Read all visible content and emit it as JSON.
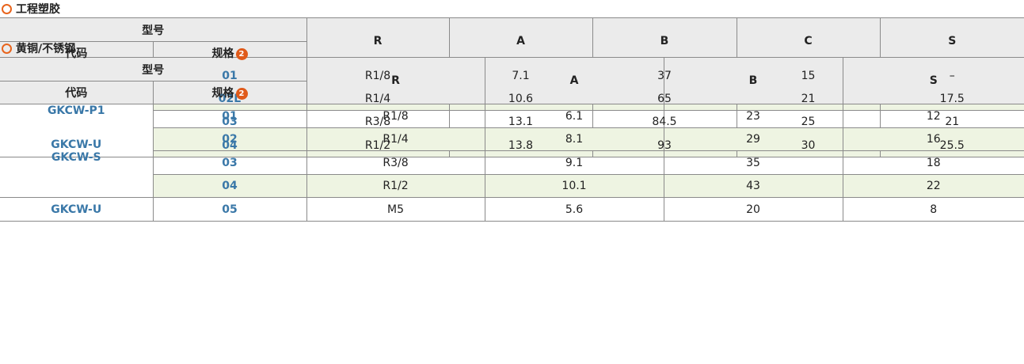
{
  "sections": [
    {
      "title": "工程塑胶",
      "header": {
        "model": "型号",
        "code": "代码",
        "spec": "规格",
        "spec_badge": "2",
        "columns": [
          "R",
          "A",
          "B",
          "C",
          "S"
        ]
      },
      "groups": [
        {
          "code": [
            "GKCW-P1"
          ],
          "rows": [
            {
              "spec": "01",
              "cells": [
                "R1/8",
                7.1,
                37,
                15,
                "–"
              ]
            },
            {
              "spec": "02L",
              "cells": [
                "R1/4",
                10.6,
                65,
                21,
                17.5
              ]
            },
            {
              "spec": "03",
              "cells": [
                "R3/8",
                13.1,
                84.5,
                25,
                21
              ]
            },
            {
              "spec": "04",
              "cells": [
                "R1/2",
                13.8,
                93,
                30,
                25.5
              ]
            }
          ]
        }
      ]
    },
    {
      "title": "黄铜/不锈钢",
      "header": {
        "model": "型号",
        "code": "代码",
        "spec": "规格",
        "spec_badge": "2",
        "columns": [
          "R",
          "A",
          "B",
          "S"
        ]
      },
      "groups": [
        {
          "code": [
            "GKCW-U",
            "GKCW-S"
          ],
          "rows": [
            {
              "spec": "01",
              "cells": [
                "R1/8",
                6.1,
                23,
                12
              ]
            },
            {
              "spec": "02",
              "cells": [
                "R1/4",
                8.1,
                29,
                16
              ]
            },
            {
              "spec": "03",
              "cells": [
                "R3/8",
                9.1,
                35,
                18
              ]
            },
            {
              "spec": "04",
              "cells": [
                "R1/2",
                10.1,
                43,
                22
              ]
            }
          ]
        },
        {
          "code": [
            "GKCW-U"
          ],
          "rows": [
            {
              "spec": "05",
              "cells": [
                "M5",
                5.6,
                20,
                8
              ]
            }
          ]
        }
      ]
    }
  ]
}
